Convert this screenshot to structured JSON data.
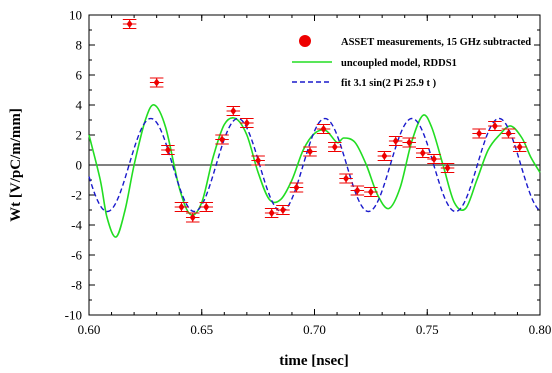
{
  "chart_data": {
    "type": "scatter",
    "xlabel": "time [nsec]",
    "ylabel": "Wt [V/pC/m/mm]",
    "xlim": [
      0.6,
      0.8
    ],
    "ylim": [
      -10,
      10
    ],
    "x_ticks": [
      0.6,
      0.65,
      0.7,
      0.75,
      0.8
    ],
    "x_tick_labels": [
      "0.60",
      "0.65",
      "0.70",
      "0.75",
      "0.80"
    ],
    "y_ticks": [
      -10,
      -8,
      -6,
      -4,
      -2,
      0,
      2,
      4,
      6,
      8,
      10
    ],
    "y_tick_labels": [
      "-10",
      "-8",
      "-6",
      "-4",
      "-2",
      "0",
      "2",
      "4",
      "6",
      "8",
      "10"
    ],
    "grid": false,
    "legend_position": "top-right",
    "series": [
      {
        "name": "ASSET measurements, 15 GHz subtracted",
        "kind": "points-with-error",
        "color": "#ee0000",
        "x_error": 0.003,
        "y_error": 0.3,
        "points": [
          [
            0.618,
            9.4
          ],
          [
            0.63,
            5.5
          ],
          [
            0.635,
            1.0
          ],
          [
            0.641,
            -2.8
          ],
          [
            0.646,
            -3.5
          ],
          [
            0.652,
            -2.8
          ],
          [
            0.659,
            1.7
          ],
          [
            0.664,
            3.6
          ],
          [
            0.67,
            2.8
          ],
          [
            0.675,
            0.3
          ],
          [
            0.681,
            -3.2
          ],
          [
            0.686,
            -3.0
          ],
          [
            0.692,
            -1.5
          ],
          [
            0.698,
            0.9
          ],
          [
            0.704,
            2.4
          ],
          [
            0.709,
            1.2
          ],
          [
            0.714,
            -0.9
          ],
          [
            0.719,
            -1.7
          ],
          [
            0.725,
            -1.8
          ],
          [
            0.731,
            0.6
          ],
          [
            0.736,
            1.6
          ],
          [
            0.742,
            1.5
          ],
          [
            0.748,
            0.8
          ],
          [
            0.753,
            0.4
          ],
          [
            0.759,
            -0.2
          ],
          [
            0.773,
            2.1
          ],
          [
            0.78,
            2.6
          ],
          [
            0.786,
            2.1
          ],
          [
            0.791,
            1.2
          ]
        ]
      },
      {
        "name": "uncoupled model, RDDS1",
        "kind": "line",
        "color": "#22dd22",
        "style": "solid",
        "points": [
          [
            0.6,
            2.0
          ],
          [
            0.605,
            -1.0
          ],
          [
            0.608,
            -3.5
          ],
          [
            0.612,
            -4.8
          ],
          [
            0.616,
            -3.0
          ],
          [
            0.62,
            0.0
          ],
          [
            0.625,
            3.0
          ],
          [
            0.629,
            4.0
          ],
          [
            0.634,
            2.5
          ],
          [
            0.64,
            -1.5
          ],
          [
            0.645,
            -3.3
          ],
          [
            0.65,
            -2.5
          ],
          [
            0.655,
            0.5
          ],
          [
            0.66,
            2.7
          ],
          [
            0.665,
            3.1
          ],
          [
            0.67,
            2.0
          ],
          [
            0.675,
            -0.5
          ],
          [
            0.68,
            -2.3
          ],
          [
            0.685,
            -2.3
          ],
          [
            0.69,
            -1.0
          ],
          [
            0.695,
            1.0
          ],
          [
            0.7,
            2.1
          ],
          [
            0.705,
            2.3
          ],
          [
            0.71,
            1.5
          ],
          [
            0.713,
            1.8
          ],
          [
            0.718,
            1.5
          ],
          [
            0.723,
            0.0
          ],
          [
            0.728,
            -2.0
          ],
          [
            0.733,
            -2.9
          ],
          [
            0.738,
            -1.5
          ],
          [
            0.743,
            1.5
          ],
          [
            0.748,
            3.3
          ],
          [
            0.752,
            2.5
          ],
          [
            0.757,
            0.0
          ],
          [
            0.762,
            -2.5
          ],
          [
            0.767,
            -2.9
          ],
          [
            0.772,
            -1.0
          ],
          [
            0.777,
            1.0
          ],
          [
            0.782,
            2.0
          ],
          [
            0.787,
            2.6
          ],
          [
            0.792,
            1.8
          ],
          [
            0.796,
            0.5
          ],
          [
            0.8,
            -0.5
          ]
        ]
      },
      {
        "name": "fit 3.1 sin(2 Pi 25.9 t )",
        "kind": "sine",
        "color": "#1a1acc",
        "style": "dashed",
        "amplitude": 3.1,
        "frequency": 25.9
      }
    ]
  }
}
